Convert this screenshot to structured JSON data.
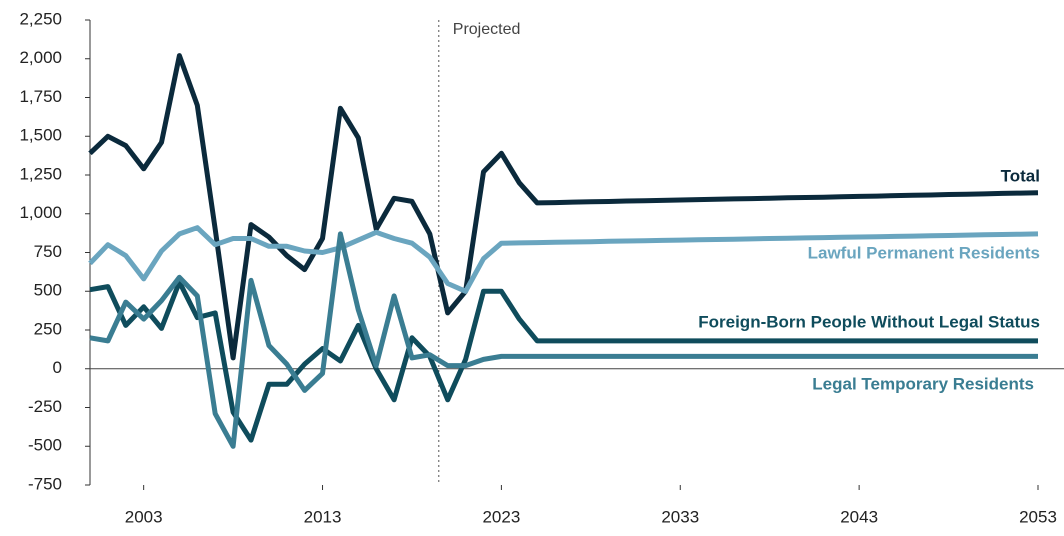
{
  "chart_data": {
    "type": "line",
    "annotation": {
      "x": 2019.5,
      "label": "Projected"
    },
    "x": [
      2000,
      2001,
      2002,
      2003,
      2004,
      2005,
      2006,
      2007,
      2008,
      2009,
      2010,
      2011,
      2012,
      2013,
      2014,
      2015,
      2016,
      2017,
      2018,
      2019,
      2020,
      2021,
      2022,
      2023,
      2024,
      2025,
      2026,
      2027,
      2028,
      2029,
      2030,
      2031,
      2032,
      2033,
      2034,
      2035,
      2036,
      2037,
      2038,
      2039,
      2040,
      2041,
      2042,
      2043,
      2044,
      2045,
      2046,
      2047,
      2048,
      2049,
      2050,
      2051,
      2052,
      2053
    ],
    "series": [
      {
        "name": "Total",
        "color": "#0b2a3c",
        "values": [
          1390,
          1500,
          1440,
          1290,
          1460,
          2020,
          1700,
          900,
          70,
          930,
          850,
          730,
          640,
          840,
          1680,
          1490,
          900,
          1100,
          1080,
          870,
          360,
          500,
          1270,
          1390,
          1200,
          1070,
          1072,
          1075,
          1077,
          1079,
          1082,
          1084,
          1086,
          1089,
          1091,
          1093,
          1096,
          1098,
          1100,
          1103,
          1105,
          1107,
          1110,
          1112,
          1114,
          1117,
          1119,
          1121,
          1124,
          1126,
          1128,
          1131,
          1133,
          1135
        ]
      },
      {
        "name": "Lawful Permanent Residents",
        "color": "#6aa5bf",
        "values": [
          680,
          800,
          730,
          580,
          760,
          870,
          910,
          800,
          840,
          840,
          790,
          790,
          760,
          750,
          780,
          830,
          880,
          840,
          810,
          720,
          550,
          500,
          710,
          810,
          812,
          814,
          816,
          818,
          820,
          822,
          824,
          826,
          828,
          830,
          832,
          834,
          836,
          838,
          840,
          842,
          844,
          846,
          848,
          850,
          852,
          854,
          856,
          858,
          860,
          862,
          864,
          866,
          868,
          870
        ]
      },
      {
        "name": "Foreign-Born People Without Legal Status",
        "color": "#0f4c5c",
        "values": [
          510,
          530,
          280,
          400,
          260,
          560,
          330,
          360,
          -280,
          -460,
          -100,
          -100,
          30,
          130,
          50,
          280,
          0,
          -200,
          200,
          80,
          -200,
          60,
          500,
          500,
          320,
          180,
          180,
          180,
          180,
          180,
          180,
          180,
          180,
          180,
          180,
          180,
          180,
          180,
          180,
          180,
          180,
          180,
          180,
          180,
          180,
          180,
          180,
          180,
          180,
          180,
          180,
          180,
          180,
          180
        ]
      },
      {
        "name": "Legal Temporary Residents",
        "color": "#3a7d92",
        "values": [
          200,
          180,
          430,
          320,
          440,
          590,
          470,
          -290,
          -500,
          570,
          150,
          30,
          -140,
          -30,
          870,
          380,
          20,
          470,
          70,
          90,
          20,
          20,
          60,
          80,
          80,
          80,
          80,
          80,
          80,
          80,
          80,
          80,
          80,
          80,
          80,
          80,
          80,
          80,
          80,
          80,
          80,
          80,
          80,
          80,
          80,
          80,
          80,
          80,
          80,
          80,
          80,
          80,
          80,
          80
        ]
      }
    ],
    "xlim": [
      2000,
      2053
    ],
    "xticks": [
      2003,
      2013,
      2023,
      2033,
      2043,
      2053
    ],
    "ylim": [
      -750,
      2250
    ],
    "yticks": [
      -750,
      -500,
      -250,
      0,
      250,
      500,
      750,
      {
        "value": 1000,
        "label": "1,000"
      },
      {
        "value": 1250,
        "label": "1,250"
      },
      {
        "value": 1500,
        "label": "1,500"
      },
      {
        "value": 1750,
        "label": "1,750"
      },
      {
        "value": 2000,
        "label": "2,000"
      },
      {
        "value": 2250,
        "label": "2,250"
      }
    ]
  }
}
